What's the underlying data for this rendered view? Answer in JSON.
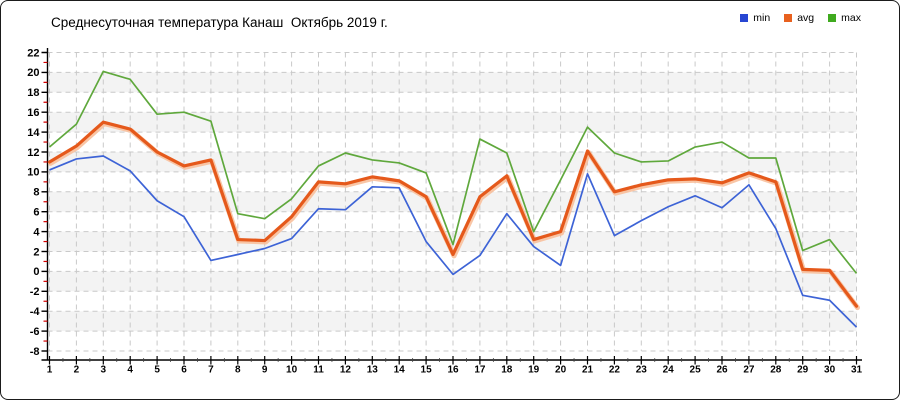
{
  "title": "Среднесуточная температура Канаш  Октябрь 2019 г.",
  "legend": {
    "position": "top-right",
    "items": [
      {
        "label": "min",
        "color": "#2746d2"
      },
      {
        "label": "avg",
        "color": "#e8611f"
      },
      {
        "label": "max",
        "color": "#3faa1f"
      }
    ]
  },
  "chart_data": {
    "type": "line",
    "title": "Среднесуточная температура Канаш  Октябрь 2019 г.",
    "x": [
      1,
      2,
      3,
      4,
      5,
      6,
      7,
      8,
      9,
      10,
      11,
      12,
      13,
      14,
      15,
      16,
      17,
      18,
      19,
      20,
      21,
      22,
      23,
      24,
      25,
      26,
      27,
      28,
      29,
      30,
      31
    ],
    "xticks": [
      1,
      2,
      3,
      4,
      5,
      6,
      7,
      8,
      9,
      10,
      11,
      12,
      13,
      14,
      15,
      16,
      17,
      18,
      19,
      20,
      21,
      22,
      23,
      24,
      25,
      26,
      27,
      28,
      29,
      30,
      31
    ],
    "yticks": [
      22,
      20,
      18,
      16,
      14,
      12,
      10,
      8,
      6,
      4,
      2,
      0,
      -2,
      -4,
      -6,
      -8
    ],
    "ylim": [
      -8,
      22
    ],
    "ytick_step": 2,
    "grid": true,
    "legend_position": "top-right",
    "series": [
      {
        "name": "min",
        "color": "#3d63d6",
        "values": [
          10.2,
          11.3,
          11.6,
          10.1,
          7.1,
          5.5,
          1.1,
          1.7,
          2.3,
          3.3,
          6.3,
          6.2,
          8.5,
          8.4,
          3.0,
          -0.3,
          1.6,
          5.8,
          2.5,
          0.6,
          9.8,
          3.6,
          5.1,
          6.5,
          7.6,
          6.4,
          8.7,
          4.3,
          -2.4,
          -2.9,
          -5.6
        ]
      },
      {
        "name": "avg",
        "color": "#e5591b",
        "halo_color": "#f8c09c",
        "values": [
          11.0,
          12.6,
          15.0,
          14.3,
          12.0,
          10.6,
          11.2,
          3.2,
          3.1,
          5.5,
          9.0,
          8.8,
          9.5,
          9.1,
          7.5,
          1.7,
          7.5,
          9.6,
          3.2,
          4.0,
          12.1,
          8.0,
          8.7,
          9.2,
          9.3,
          8.9,
          9.9,
          9.0,
          0.2,
          0.1,
          -3.5
        ]
      },
      {
        "name": "max",
        "color": "#5fa83c",
        "values": [
          12.5,
          14.8,
          20.1,
          19.3,
          15.8,
          16.0,
          15.1,
          5.8,
          5.3,
          7.3,
          10.6,
          11.9,
          11.2,
          10.9,
          9.9,
          2.7,
          13.3,
          11.9,
          4.0,
          9.2,
          14.5,
          11.9,
          11.0,
          11.1,
          12.5,
          13.0,
          11.4,
          11.4,
          2.1,
          3.2,
          -0.2
        ]
      }
    ],
    "styling": {
      "band_color": "#f3f3f3",
      "grid_color": "#c9c9c9",
      "axis_color": "#000000",
      "minor_tick_color": "#d40000",
      "x_minor_tick_color": "#444444"
    }
  }
}
